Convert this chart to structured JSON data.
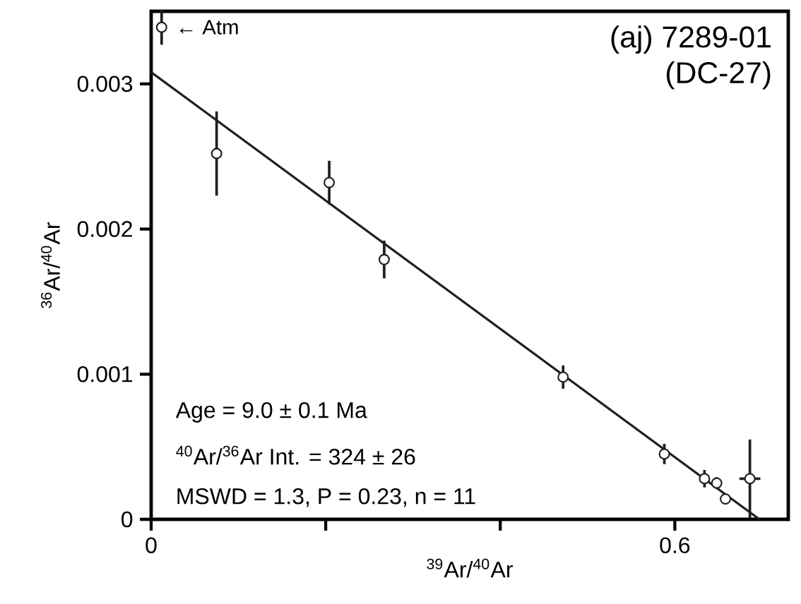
{
  "chart_data": {
    "type": "scatter",
    "title": "(aj) 7289-01",
    "subtitle": "(DC-27)",
    "xlabel": "$^{39}$Ar/$^{40}$Ar",
    "ylabel": "$^{36}$Ar/$^{40}$Ar",
    "xlim": [
      0,
      0.73
    ],
    "ylim": [
      0,
      0.0035
    ],
    "xticks": [
      0,
      {
        "value": 0.2,
        "label": null
      },
      {
        "value": 0.4,
        "label": null
      },
      0.6
    ],
    "yticks": [
      0,
      0.001,
      0.002,
      0.003
    ],
    "grid": false,
    "series": [
      {
        "color": "#231f20",
        "x": [
          0.012,
          0.075,
          0.204,
          0.267,
          0.472,
          0.588,
          0.634,
          0.648,
          0.658,
          0.686
        ],
        "values": [
          0.00339,
          0.00252,
          0.00232,
          0.00179,
          0.00098,
          0.00045,
          0.00028,
          0.00025,
          0.00014,
          0.00028
        ],
        "errors": [
          0.00012,
          0.00029,
          0.00015,
          0.00013,
          8e-05,
          7e-05,
          6e-05,
          4e-05,
          3e-05,
          0.00027
        ],
        "xerrors": [
          null,
          null,
          null,
          null,
          null,
          null,
          null,
          null,
          null,
          0.012
        ]
      },
      {
        "type": "line",
        "color": "#231f20",
        "line_style": "solid",
        "x": [
          0,
          0.697
        ],
        "values": [
          0.00308,
          0
        ]
      }
    ],
    "annotations": [
      {
        "text": "← Atm",
        "x": 0.012,
        "y": 0.00339
      },
      "Age =  9.0 ± 0.1 Ma",
      "$^{40}$Ar/$^{36}$Ar Int. =  324 ± 26",
      "MSWD = 1.3, P = 0.23, n = 11"
    ]
  }
}
